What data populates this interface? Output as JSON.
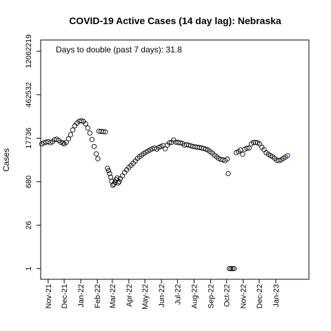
{
  "chart_data": {
    "type": "scatter",
    "title": "COVID-19 Active Cases (14 day lag): Nebraska",
    "ylabel": "Cases",
    "xlabel": "",
    "y_scale": "log",
    "ylim": [
      0.45,
      28000000
    ],
    "y_ticks": [
      {
        "value": 1,
        "label": "1"
      },
      {
        "value": 26,
        "label": "26"
      },
      {
        "value": 680,
        "label": "680"
      },
      {
        "value": 17736,
        "label": "17736"
      },
      {
        "value": 462532,
        "label": "462532"
      },
      {
        "value": 12062219,
        "label": "12062219"
      }
    ],
    "xlim": [
      "2021-10-18",
      "2023-03-04"
    ],
    "x_ticks": [
      {
        "date": "2021-11-01",
        "label": "Nov-21"
      },
      {
        "date": "2021-12-01",
        "label": "Dec-21"
      },
      {
        "date": "2022-01-01",
        "label": "Jan-22"
      },
      {
        "date": "2022-02-01",
        "label": "Feb-22"
      },
      {
        "date": "2022-03-01",
        "label": "Mar-22"
      },
      {
        "date": "2022-04-01",
        "label": "Apr-22"
      },
      {
        "date": "2022-05-01",
        "label": "May-22"
      },
      {
        "date": "2022-06-01",
        "label": "Jun-22"
      },
      {
        "date": "2022-07-01",
        "label": "Jul-22"
      },
      {
        "date": "2022-08-01",
        "label": "Aug-22"
      },
      {
        "date": "2022-09-01",
        "label": "Sep-22"
      },
      {
        "date": "2022-10-01",
        "label": "Oct-22"
      },
      {
        "date": "2022-11-01",
        "label": "Nov-22"
      },
      {
        "date": "2022-12-01",
        "label": "Dec-22"
      },
      {
        "date": "2023-01-01",
        "label": "Jan-23"
      }
    ],
    "annotation": "Days to double (past 7 days): 31.8",
    "grid": false,
    "marker": "open-circle",
    "colors": {
      "points": "#000000",
      "last_point": "#0000ff",
      "axes": "#000000"
    },
    "series": [
      {
        "points": [
          [
            "2021-10-20",
            11500
          ],
          [
            "2021-10-24",
            12500
          ],
          [
            "2021-10-28",
            13200
          ],
          [
            "2021-11-01",
            13800
          ],
          [
            "2021-11-05",
            12600
          ],
          [
            "2021-11-09",
            13500
          ],
          [
            "2021-11-13",
            15800
          ],
          [
            "2021-11-17",
            16500
          ],
          [
            "2021-11-21",
            15000
          ],
          [
            "2021-11-25",
            13000
          ],
          [
            "2021-11-29",
            12500
          ],
          [
            "2021-12-01",
            11500
          ],
          [
            "2021-12-05",
            13000
          ],
          [
            "2021-12-09",
            17000
          ],
          [
            "2021-12-13",
            23000
          ],
          [
            "2021-12-17",
            33000
          ],
          [
            "2021-12-21",
            45000
          ],
          [
            "2021-12-25",
            55000
          ],
          [
            "2021-12-29",
            63000
          ],
          [
            "2022-01-02",
            66000
          ],
          [
            "2022-01-06",
            62000
          ],
          [
            "2022-01-10",
            52000
          ],
          [
            "2022-01-14",
            38000
          ],
          [
            "2022-01-18",
            26000
          ],
          [
            "2022-01-22",
            16000
          ],
          [
            "2022-01-26",
            9500
          ],
          [
            "2022-01-30",
            5500
          ],
          [
            "2022-02-02",
            3800
          ],
          [
            "2022-02-04",
            30000
          ],
          [
            "2022-02-08",
            29500
          ],
          [
            "2022-02-12",
            29000
          ],
          [
            "2022-02-16",
            28500
          ],
          [
            "2022-02-20",
            1850
          ],
          [
            "2022-02-22",
            1550
          ],
          [
            "2022-02-24",
            1250
          ],
          [
            "2022-02-26",
            950
          ],
          [
            "2022-02-28",
            700
          ],
          [
            "2022-03-02",
            520
          ],
          [
            "2022-03-04",
            560
          ],
          [
            "2022-03-06",
            650
          ],
          [
            "2022-03-08",
            780
          ],
          [
            "2022-03-10",
            900
          ],
          [
            "2022-03-12",
            620
          ],
          [
            "2022-03-14",
            680
          ],
          [
            "2022-03-16",
            850
          ],
          [
            "2022-03-20",
            1050
          ],
          [
            "2022-03-24",
            1350
          ],
          [
            "2022-03-28",
            1650
          ],
          [
            "2022-04-01",
            2000
          ],
          [
            "2022-04-05",
            2300
          ],
          [
            "2022-04-09",
            2700
          ],
          [
            "2022-04-13",
            3200
          ],
          [
            "2022-04-17",
            3900
          ],
          [
            "2022-04-21",
            4400
          ],
          [
            "2022-04-25",
            5000
          ],
          [
            "2022-04-29",
            5600
          ],
          [
            "2022-05-03",
            6200
          ],
          [
            "2022-05-07",
            6800
          ],
          [
            "2022-05-11",
            7400
          ],
          [
            "2022-05-15",
            8000
          ],
          [
            "2022-05-19",
            8500
          ],
          [
            "2022-05-23",
            7800
          ],
          [
            "2022-05-27",
            8800
          ],
          [
            "2022-05-31",
            9500
          ],
          [
            "2022-06-04",
            10200
          ],
          [
            "2022-06-08",
            8000
          ],
          [
            "2022-06-12",
            10600
          ],
          [
            "2022-06-16",
            12500
          ],
          [
            "2022-06-20",
            13000
          ],
          [
            "2022-06-24",
            15500
          ],
          [
            "2022-06-28",
            13200
          ],
          [
            "2022-07-02",
            12800
          ],
          [
            "2022-07-06",
            12500
          ],
          [
            "2022-07-10",
            12000
          ],
          [
            "2022-07-14",
            10500
          ],
          [
            "2022-07-18",
            11000
          ],
          [
            "2022-07-22",
            10500
          ],
          [
            "2022-07-26",
            10000
          ],
          [
            "2022-07-30",
            9500
          ],
          [
            "2022-08-03",
            9300
          ],
          [
            "2022-08-07",
            9000
          ],
          [
            "2022-08-11",
            8800
          ],
          [
            "2022-08-15",
            8500
          ],
          [
            "2022-08-19",
            8200
          ],
          [
            "2022-08-23",
            7800
          ],
          [
            "2022-08-27",
            7300
          ],
          [
            "2022-08-31",
            6500
          ],
          [
            "2022-09-04",
            5800
          ],
          [
            "2022-09-08",
            5000
          ],
          [
            "2022-09-12",
            4400
          ],
          [
            "2022-09-16",
            3900
          ],
          [
            "2022-09-20",
            3600
          ],
          [
            "2022-09-24",
            3500
          ],
          [
            "2022-09-28",
            3300
          ],
          [
            "2022-10-02",
            3700
          ],
          [
            "2022-10-04",
            1250
          ],
          [
            "2022-10-06",
            1
          ],
          [
            "2022-10-09",
            1
          ],
          [
            "2022-10-12",
            1
          ],
          [
            "2022-10-15",
            1
          ],
          [
            "2022-10-19",
            6000
          ],
          [
            "2022-10-23",
            6500
          ],
          [
            "2022-10-27",
            7300
          ],
          [
            "2022-10-31",
            5300
          ],
          [
            "2022-11-04",
            7800
          ],
          [
            "2022-11-08",
            8300
          ],
          [
            "2022-11-12",
            8500
          ],
          [
            "2022-11-16",
            11500
          ],
          [
            "2022-11-20",
            12800
          ],
          [
            "2022-11-24",
            13000
          ],
          [
            "2022-11-28",
            12500
          ],
          [
            "2022-12-02",
            11500
          ],
          [
            "2022-12-06",
            9000
          ],
          [
            "2022-12-10",
            7500
          ],
          [
            "2022-12-14",
            6000
          ],
          [
            "2022-12-18",
            5300
          ],
          [
            "2022-12-22",
            4800
          ],
          [
            "2022-12-26",
            4400
          ],
          [
            "2022-12-30",
            3900
          ],
          [
            "2023-01-03",
            3400
          ],
          [
            "2023-01-07",
            3300
          ],
          [
            "2023-01-11",
            3500
          ],
          [
            "2023-01-15",
            3900
          ],
          [
            "2023-01-19",
            4300
          ],
          [
            "2023-01-23",
            4800
          ]
        ]
      }
    ]
  }
}
